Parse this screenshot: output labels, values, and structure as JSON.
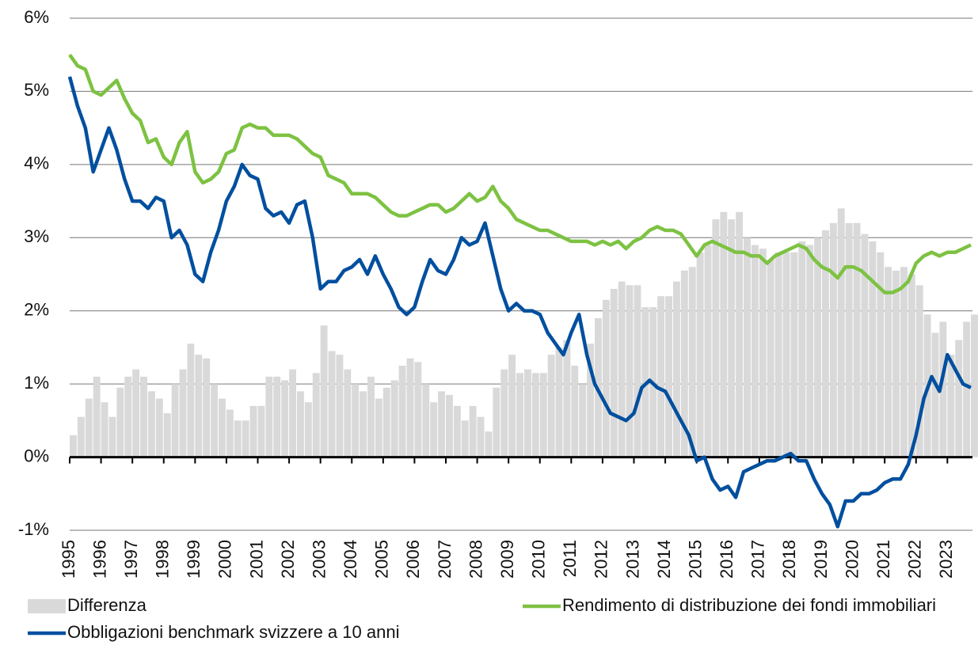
{
  "chart_data": {
    "type": "line",
    "x": [
      1995,
      1995.25,
      1995.5,
      1995.75,
      1996,
      1996.25,
      1996.5,
      1996.75,
      1997,
      1997.25,
      1997.5,
      1997.75,
      1998,
      1998.25,
      1998.5,
      1998.75,
      1999,
      1999.25,
      1999.5,
      1999.75,
      2000,
      2000.25,
      2000.5,
      2000.75,
      2001,
      2001.25,
      2001.5,
      2001.75,
      2002,
      2002.25,
      2002.5,
      2002.75,
      2003,
      2003.25,
      2003.5,
      2003.75,
      2004,
      2004.25,
      2004.5,
      2004.75,
      2005,
      2005.25,
      2005.5,
      2005.75,
      2006,
      2006.25,
      2006.5,
      2006.75,
      2007,
      2007.25,
      2007.5,
      2007.75,
      2008,
      2008.25,
      2008.5,
      2008.75,
      2009,
      2009.25,
      2009.5,
      2009.75,
      2010,
      2010.25,
      2010.5,
      2010.75,
      2011,
      2011.25,
      2011.5,
      2011.75,
      2012,
      2012.25,
      2012.5,
      2012.75,
      2013,
      2013.25,
      2013.5,
      2013.75,
      2014,
      2014.25,
      2014.5,
      2014.75,
      2015,
      2015.25,
      2015.5,
      2015.75,
      2016,
      2016.25,
      2016.5,
      2016.75,
      2017,
      2017.25,
      2017.5,
      2017.75,
      2018,
      2018.25,
      2018.5,
      2018.75,
      2019,
      2019.25,
      2019.5,
      2019.75,
      2020,
      2020.25,
      2020.5,
      2020.75,
      2021,
      2021.25,
      2021.5,
      2021.75,
      2022,
      2022.25,
      2022.5,
      2022.75,
      2023,
      2023.25,
      2023.5,
      2023.75
    ],
    "series": [
      {
        "name": "Differenza",
        "color": "#d9d9d9",
        "style": "bar",
        "values": [
          0.3,
          0.55,
          0.8,
          1.1,
          0.75,
          0.55,
          0.95,
          1.1,
          1.2,
          1.1,
          0.9,
          0.8,
          0.6,
          1.0,
          1.2,
          1.55,
          1.4,
          1.35,
          1.0,
          0.8,
          0.65,
          0.5,
          0.5,
          0.7,
          0.7,
          1.1,
          1.1,
          1.05,
          1.2,
          0.9,
          0.75,
          1.15,
          1.8,
          1.45,
          1.4,
          1.2,
          1.0,
          0.9,
          1.1,
          0.8,
          0.95,
          1.05,
          1.25,
          1.35,
          1.3,
          1.0,
          0.75,
          0.9,
          0.85,
          0.7,
          0.5,
          0.7,
          0.55,
          0.35,
          0.95,
          1.2,
          1.4,
          1.15,
          1.2,
          1.15,
          1.15,
          1.4,
          1.5,
          1.6,
          1.25,
          1.0,
          1.55,
          1.9,
          2.15,
          2.3,
          2.4,
          2.35,
          2.35,
          2.05,
          2.05,
          2.2,
          2.2,
          2.4,
          2.55,
          2.6,
          2.8,
          2.9,
          3.25,
          3.35,
          3.25,
          3.35,
          3.0,
          2.9,
          2.85,
          2.7,
          2.8,
          2.8,
          2.8,
          2.95,
          2.9,
          3.0,
          3.1,
          3.2,
          3.4,
          3.2,
          3.2,
          3.05,
          2.95,
          2.8,
          2.6,
          2.55,
          2.6,
          2.5,
          2.35,
          1.95,
          1.7,
          1.85,
          1.4,
          1.6,
          1.85,
          1.95
        ]
      },
      {
        "name": "Rendimento di distribuzione dei fondi immobiliari",
        "color": "#7dc242",
        "style": "line",
        "values": [
          5.5,
          5.35,
          5.3,
          5.0,
          4.95,
          5.05,
          5.15,
          4.9,
          4.7,
          4.6,
          4.3,
          4.35,
          4.1,
          4.0,
          4.3,
          4.45,
          3.9,
          3.75,
          3.8,
          3.9,
          4.15,
          4.2,
          4.5,
          4.55,
          4.5,
          4.5,
          4.4,
          4.4,
          4.4,
          4.35,
          4.25,
          4.15,
          4.1,
          3.85,
          3.8,
          3.75,
          3.6,
          3.6,
          3.6,
          3.55,
          3.45,
          3.35,
          3.3,
          3.3,
          3.35,
          3.4,
          3.45,
          3.45,
          3.35,
          3.4,
          3.5,
          3.6,
          3.5,
          3.55,
          3.7,
          3.5,
          3.4,
          3.25,
          3.2,
          3.15,
          3.1,
          3.1,
          3.05,
          3.0,
          2.95,
          2.95,
          2.95,
          2.9,
          2.95,
          2.9,
          2.95,
          2.85,
          2.95,
          3.0,
          3.1,
          3.15,
          3.1,
          3.1,
          3.05,
          2.9,
          2.75,
          2.9,
          2.95,
          2.9,
          2.85,
          2.8,
          2.8,
          2.75,
          2.75,
          2.65,
          2.75,
          2.8,
          2.85,
          2.9,
          2.85,
          2.7,
          2.6,
          2.55,
          2.45,
          2.6,
          2.6,
          2.55,
          2.45,
          2.35,
          2.25,
          2.25,
          2.3,
          2.4,
          2.65,
          2.75,
          2.8,
          2.75,
          2.8,
          2.8,
          2.85,
          2.9
        ]
      },
      {
        "name": "Obbligazioni benchmark svizzere a 10 anni",
        "color": "#004f9f",
        "style": "line",
        "values": [
          5.2,
          4.8,
          4.5,
          3.9,
          4.2,
          4.5,
          4.2,
          3.8,
          3.5,
          3.5,
          3.4,
          3.55,
          3.5,
          3.0,
          3.1,
          2.9,
          2.5,
          2.4,
          2.8,
          3.1,
          3.5,
          3.7,
          4.0,
          3.85,
          3.8,
          3.4,
          3.3,
          3.35,
          3.2,
          3.45,
          3.5,
          3.0,
          2.3,
          2.4,
          2.4,
          2.55,
          2.6,
          2.7,
          2.5,
          2.75,
          2.5,
          2.3,
          2.05,
          1.95,
          2.05,
          2.4,
          2.7,
          2.55,
          2.5,
          2.7,
          3.0,
          2.9,
          2.95,
          3.2,
          2.75,
          2.3,
          2.0,
          2.1,
          2.0,
          2.0,
          1.95,
          1.7,
          1.55,
          1.4,
          1.7,
          1.95,
          1.4,
          1.0,
          0.8,
          0.6,
          0.55,
          0.5,
          0.6,
          0.95,
          1.05,
          0.95,
          0.9,
          0.7,
          0.5,
          0.3,
          -0.05,
          0.0,
          -0.3,
          -0.45,
          -0.4,
          -0.55,
          -0.2,
          -0.15,
          -0.1,
          -0.05,
          -0.05,
          0.0,
          0.05,
          -0.05,
          -0.05,
          -0.3,
          -0.5,
          -0.65,
          -0.95,
          -0.6,
          -0.6,
          -0.5,
          -0.5,
          -0.45,
          -0.35,
          -0.3,
          -0.3,
          -0.1,
          0.3,
          0.8,
          1.1,
          0.9,
          1.4,
          1.2,
          1.0,
          0.95
        ]
      }
    ],
    "xlim": [
      1995,
      2023.8
    ],
    "xticks": [
      1995,
      1996,
      1997,
      1998,
      1999,
      2000,
      2001,
      2002,
      2003,
      2004,
      2005,
      2006,
      2007,
      2008,
      2009,
      2010,
      2011,
      2012,
      2013,
      2014,
      2015,
      2016,
      2017,
      2018,
      2019,
      2020,
      2021,
      2022,
      2023
    ],
    "ylim": [
      -1,
      6
    ],
    "yticks": [
      {
        "value": -1,
        "label": "-1%"
      },
      {
        "value": 0,
        "label": "0%"
      },
      {
        "value": 1,
        "label": "1%"
      },
      {
        "value": 2,
        "label": "2%"
      },
      {
        "value": 3,
        "label": "3%"
      },
      {
        "value": 4,
        "label": "4%"
      },
      {
        "value": 5,
        "label": "5%"
      },
      {
        "value": 6,
        "label": "6%"
      }
    ],
    "grid": true
  }
}
